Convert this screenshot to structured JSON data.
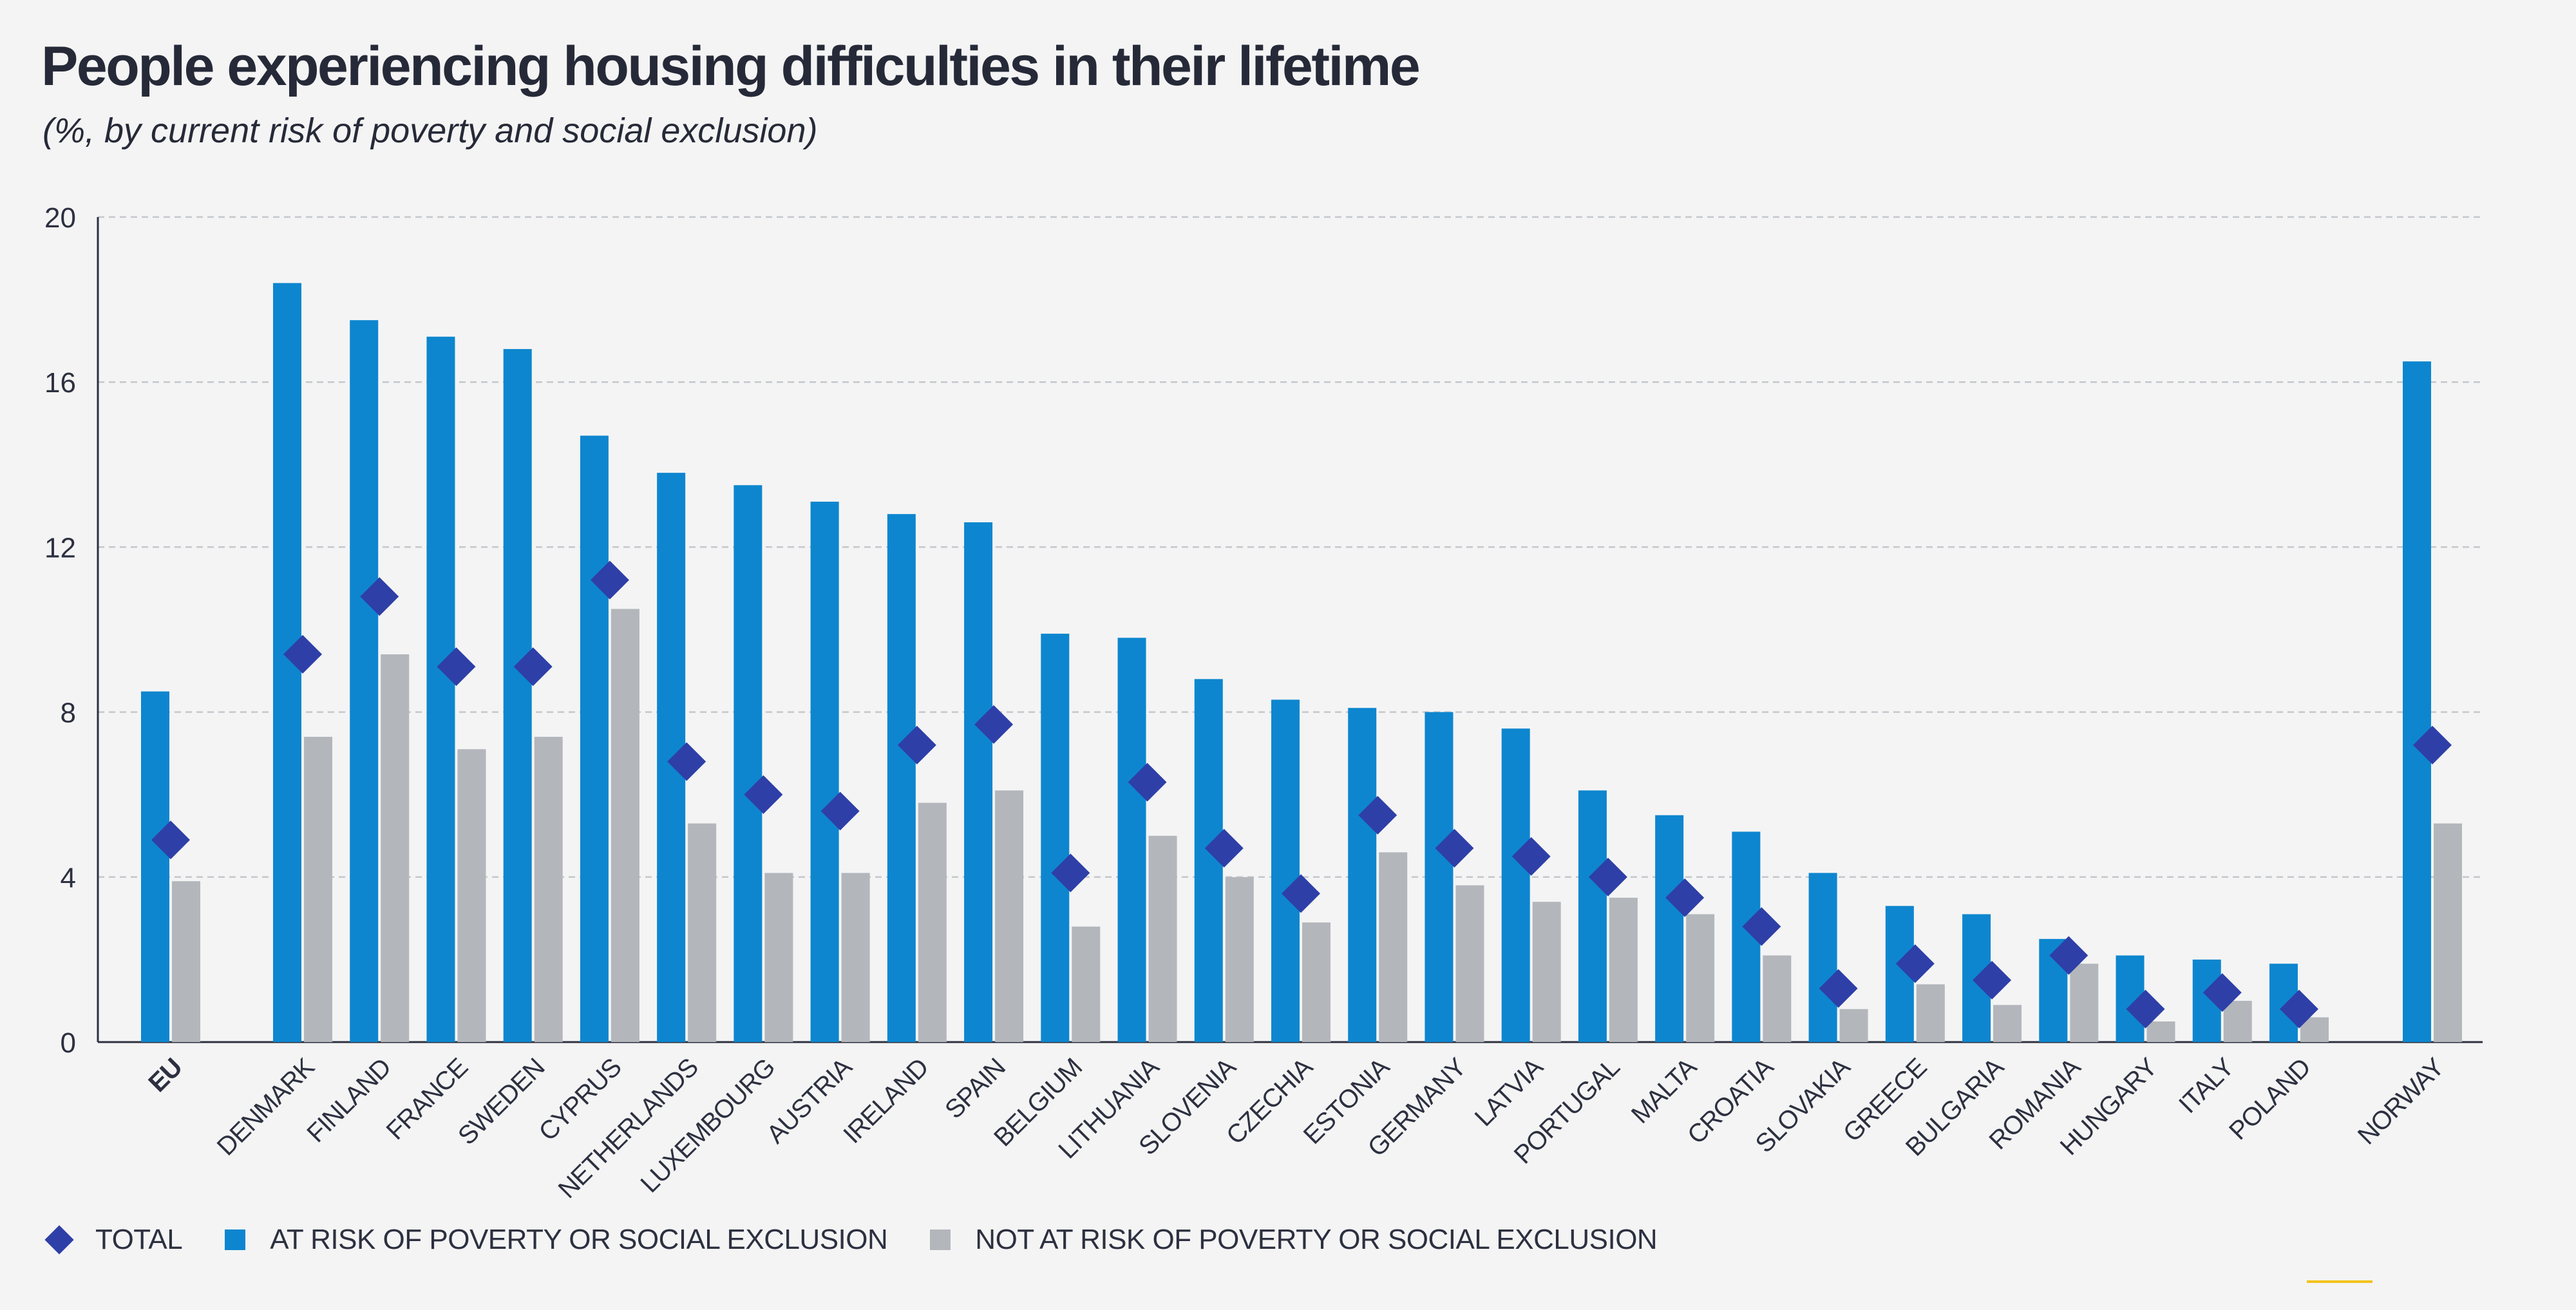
{
  "chart_data": {
    "type": "bar",
    "title": "People experiencing housing difficulties in their lifetime",
    "subtitle": "(%, by current risk of poverty and social exclusion)",
    "xlabel": "",
    "ylabel": "",
    "ylim": [
      0,
      20
    ],
    "yticks": [
      0,
      4,
      8,
      12,
      16,
      20
    ],
    "grid": true,
    "legend_position": "bottom-left",
    "categories": [
      "EU",
      "DENMARK",
      "FINLAND",
      "FRANCE",
      "SWEDEN",
      "CYPRUS",
      "NETHERLANDS",
      "LUXEMBOURG",
      "AUSTRIA",
      "IRELAND",
      "SPAIN",
      "BELGIUM",
      "LITHUANIA",
      "SLOVENIA",
      "CZECHIA",
      "ESTONIA",
      "GERMANY",
      "LATVIA",
      "PORTUGAL",
      "MALTA",
      "CROATIA",
      "SLOVAKIA",
      "GREECE",
      "BULGARIA",
      "ROMANIA",
      "HUNGARY",
      "ITALY",
      "POLAND",
      "NORWAY"
    ],
    "series": [
      {
        "name": "TOTAL",
        "kind": "marker",
        "color": "#2e3fa8",
        "values": [
          4.9,
          9.4,
          10.8,
          9.1,
          9.1,
          11.2,
          6.8,
          6.0,
          5.6,
          7.2,
          7.7,
          4.1,
          6.3,
          4.7,
          3.6,
          5.5,
          4.7,
          4.5,
          4.0,
          3.5,
          2.8,
          1.3,
          1.9,
          1.5,
          2.1,
          0.8,
          1.2,
          0.8,
          7.2
        ]
      },
      {
        "name": "AT RISK OF POVERTY OR SOCIAL EXCLUSION",
        "kind": "bar",
        "color": "#0d86cf",
        "values": [
          8.5,
          18.4,
          17.5,
          17.1,
          16.8,
          14.7,
          13.8,
          13.5,
          13.1,
          12.8,
          12.6,
          9.9,
          9.8,
          8.8,
          8.3,
          8.1,
          8.0,
          7.6,
          6.1,
          5.5,
          5.1,
          4.1,
          3.3,
          3.1,
          2.5,
          2.1,
          2.0,
          1.9,
          16.5
        ]
      },
      {
        "name": "NOT AT RISK OF POVERTY OR SOCIAL EXCLUSION",
        "kind": "bar",
        "color": "#b3b7bb",
        "values": [
          3.9,
          7.4,
          9.4,
          7.1,
          7.4,
          10.5,
          5.3,
          4.1,
          4.1,
          5.8,
          6.1,
          2.8,
          5.0,
          4.0,
          2.9,
          4.6,
          3.8,
          3.4,
          3.5,
          3.1,
          2.1,
          0.8,
          1.4,
          0.9,
          1.9,
          0.5,
          1.0,
          0.6,
          5.3
        ]
      }
    ]
  }
}
